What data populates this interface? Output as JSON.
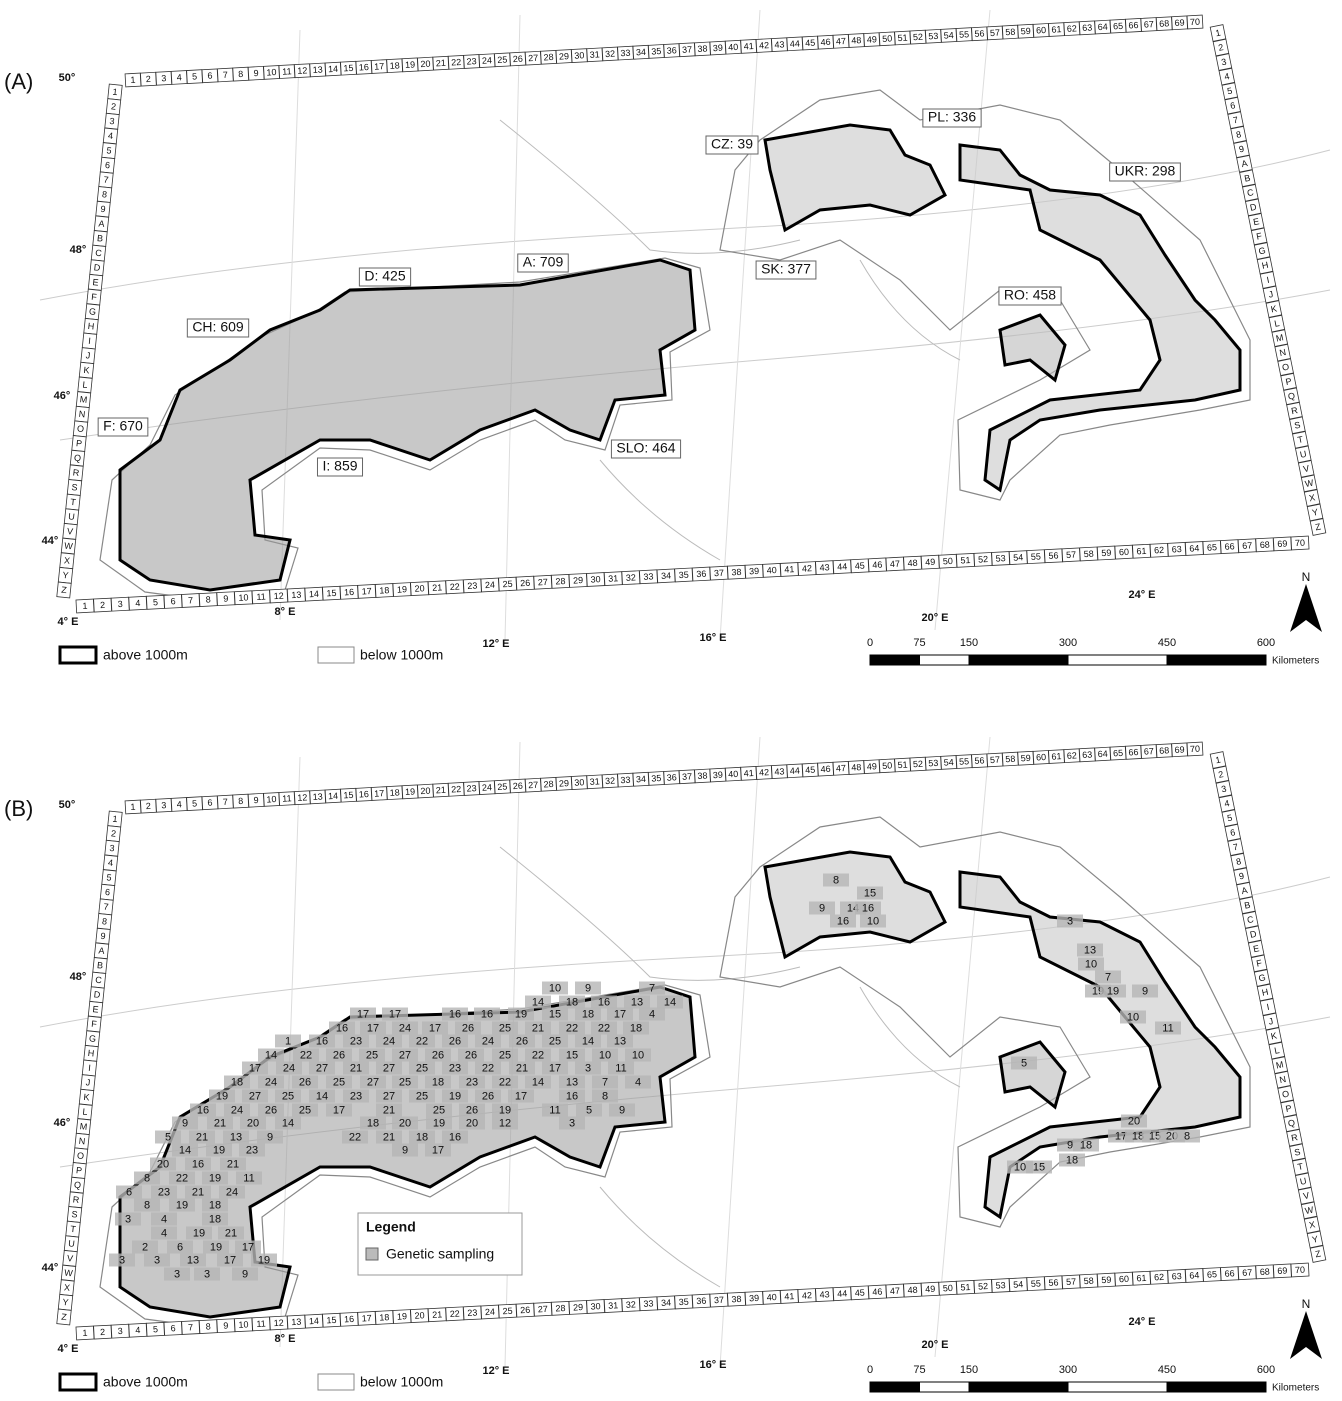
{
  "panels": [
    {
      "label": "(A)"
    },
    {
      "label": "(B)"
    }
  ],
  "grid_columns": [
    "1",
    "2",
    "3",
    "4",
    "5",
    "6",
    "7",
    "8",
    "9",
    "10",
    "11",
    "12",
    "13",
    "14",
    "15",
    "16",
    "17",
    "18",
    "19",
    "20",
    "21",
    "22",
    "23",
    "24",
    "25",
    "26",
    "27",
    "28",
    "29",
    "30",
    "31",
    "32",
    "33",
    "34",
    "35",
    "36",
    "37",
    "38",
    "39",
    "40",
    "41",
    "42",
    "43",
    "44",
    "45",
    "46",
    "47",
    "48",
    "49",
    "50",
    "51",
    "52",
    "53",
    "54",
    "55",
    "56",
    "57",
    "58",
    "59",
    "60",
    "61",
    "62",
    "63",
    "64",
    "65",
    "66",
    "67",
    "68",
    "69",
    "70"
  ],
  "grid_rows": [
    "1",
    "2",
    "3",
    "4",
    "5",
    "6",
    "7",
    "8",
    "9",
    "A",
    "B",
    "C",
    "D",
    "E",
    "F",
    "G",
    "H",
    "I",
    "J",
    "K",
    "L",
    "M",
    "N",
    "O",
    "P",
    "Q",
    "R",
    "S",
    "T",
    "U",
    "V",
    "W",
    "X",
    "Y",
    "Z"
  ],
  "latitudes": [
    "50°",
    "48°",
    "46°",
    "44°"
  ],
  "longitudes": [
    "4° E",
    "8° E",
    "12° E",
    "16° E",
    "20° E",
    "24° E"
  ],
  "country_labels": [
    "CZ: 39",
    "PL: 336",
    "UKR: 298",
    "D: 425",
    "A: 709",
    "SK: 377",
    "RO: 458",
    "CH: 609",
    "F: 670",
    "SLO: 464",
    "I: 859"
  ],
  "legend": {
    "above": "above 1000m",
    "below": "below 1000m",
    "title": "Legend",
    "sampling": "Genetic sampling"
  },
  "scale": {
    "values": [
      0,
      75,
      150,
      300,
      450,
      600
    ],
    "unit": "Kilometers"
  },
  "north": "N",
  "sampling_counts": [
    10,
    9,
    7,
    14,
    18,
    16,
    13,
    14,
    17,
    17,
    16,
    16,
    19,
    15,
    18,
    17,
    4,
    16,
    17,
    24,
    17,
    26,
    25,
    21,
    22,
    22,
    18,
    1,
    16,
    23,
    24,
    22,
    26,
    24,
    26,
    25,
    14,
    13,
    14,
    22,
    26,
    25,
    27,
    26,
    26,
    25,
    22,
    15,
    10,
    10,
    17,
    24,
    27,
    21,
    27,
    25,
    23,
    22,
    21,
    17,
    3,
    11,
    18,
    24,
    26,
    25,
    27,
    25,
    18,
    23,
    22,
    14,
    13,
    7,
    4,
    19,
    27,
    25,
    14,
    23,
    27,
    25,
    19,
    26,
    17,
    16,
    8,
    16,
    24,
    26,
    25,
    17,
    21,
    25,
    26,
    19,
    11,
    5,
    9,
    9,
    21,
    20,
    14,
    18,
    20,
    19,
    20,
    12,
    3,
    5,
    21,
    13,
    9,
    22,
    21,
    18,
    16,
    14,
    19,
    23,
    9,
    17,
    20,
    16,
    21,
    8,
    22,
    19,
    11,
    6,
    23,
    21,
    24,
    8,
    19,
    18,
    3,
    4,
    18,
    4,
    19,
    21,
    2,
    6,
    19,
    17,
    3,
    3,
    13,
    17,
    19,
    3,
    3,
    9,
    8,
    15,
    9,
    14,
    16,
    16,
    10,
    3,
    13,
    10,
    7,
    19,
    19,
    9,
    10,
    11,
    5,
    20,
    17,
    18,
    15,
    20,
    8,
    9,
    18,
    18,
    10,
    15
  ]
}
